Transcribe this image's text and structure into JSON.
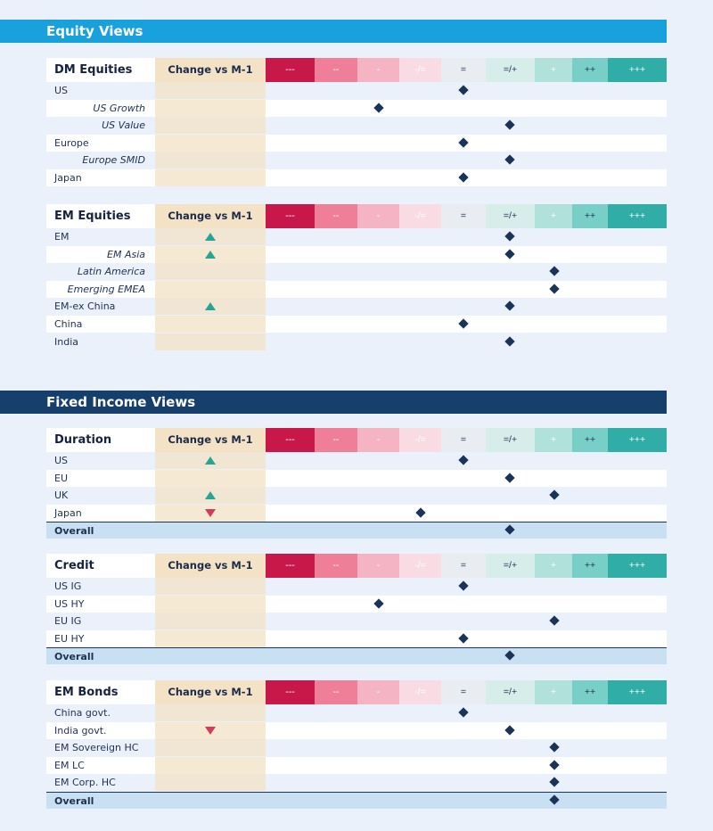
{
  "sections": {
    "equity_title": "Equity Views",
    "fixed_income_title": "Fixed Income Views"
  },
  "change_header": "Change vs M-1",
  "scale_labels": [
    "---",
    "--",
    "-",
    "-/=",
    "=",
    "=/+",
    "+",
    "++",
    "+++"
  ],
  "scale_colors": [
    "#c8184a",
    "#ef7e98",
    "#f4b4c4",
    "#f9dbe3",
    "#e9edf1",
    "#d7ede9",
    "#b0e1db",
    "#77cfc7",
    "#2fada6"
  ],
  "scale_text_colors": [
    "#ffffff",
    "#ffffff",
    "#ffffff",
    "#ffffff",
    "#1d2f55",
    "#1d2f55",
    "#ffffff",
    "#1d2f55",
    "#ffffff"
  ],
  "tables": [
    {
      "title": "DM Equities",
      "rows": [
        {
          "label": "US",
          "sub": false,
          "view": "=",
          "change": null
        },
        {
          "label": "US Growth",
          "sub": true,
          "view": "-",
          "change": null
        },
        {
          "label": "US Value",
          "sub": true,
          "view": "=/+",
          "change": null
        },
        {
          "label": "Europe",
          "sub": false,
          "view": "=",
          "change": null
        },
        {
          "label": "Europe SMID",
          "sub": true,
          "view": "=/+",
          "change": null
        },
        {
          "label": "Japan",
          "sub": false,
          "view": "=",
          "change": null
        }
      ]
    },
    {
      "title": "EM Equities",
      "rows": [
        {
          "label": "EM",
          "sub": false,
          "view": "=/+",
          "change": "up"
        },
        {
          "label": "EM Asia",
          "sub": true,
          "view": "=/+",
          "change": "up"
        },
        {
          "label": "Latin America",
          "sub": true,
          "view": "+",
          "change": null
        },
        {
          "label": "Emerging EMEA",
          "sub": true,
          "view": "+",
          "change": null
        },
        {
          "label": "EM-ex China",
          "sub": false,
          "view": "=/+",
          "change": "up"
        },
        {
          "label": "China",
          "sub": false,
          "view": "=",
          "change": null
        },
        {
          "label": "India",
          "sub": false,
          "view": "=/+",
          "change": null
        }
      ]
    },
    {
      "title": "Duration",
      "rows": [
        {
          "label": "US",
          "sub": false,
          "view": "=",
          "change": "up"
        },
        {
          "label": "EU",
          "sub": false,
          "view": "=/+",
          "change": null
        },
        {
          "label": "UK",
          "sub": false,
          "view": "+",
          "change": "up"
        },
        {
          "label": "Japan",
          "sub": false,
          "view": "-/=",
          "change": "down"
        }
      ],
      "overall": {
        "label": "Overall",
        "view": "=/+"
      }
    },
    {
      "title": "Credit",
      "rows": [
        {
          "label": "US IG",
          "sub": false,
          "view": "=",
          "change": null
        },
        {
          "label": "US HY",
          "sub": false,
          "view": "-",
          "change": null
        },
        {
          "label": "EU IG",
          "sub": false,
          "view": "+",
          "change": null
        },
        {
          "label": "EU HY",
          "sub": false,
          "view": "=",
          "change": null
        }
      ],
      "overall": {
        "label": "Overall",
        "view": "=/+"
      }
    },
    {
      "title": "EM Bonds",
      "rows": [
        {
          "label": "China govt.",
          "sub": false,
          "view": "=",
          "change": null
        },
        {
          "label": "India govt.",
          "sub": false,
          "view": "=/+",
          "change": "down"
        },
        {
          "label": "EM Sovereign HC",
          "sub": false,
          "view": "+",
          "change": null
        },
        {
          "label": "EM LC",
          "sub": false,
          "view": "+",
          "change": null
        },
        {
          "label": "EM Corp. HC",
          "sub": false,
          "view": "+",
          "change": null
        }
      ],
      "overall": {
        "label": "Overall",
        "view": "+"
      }
    }
  ]
}
